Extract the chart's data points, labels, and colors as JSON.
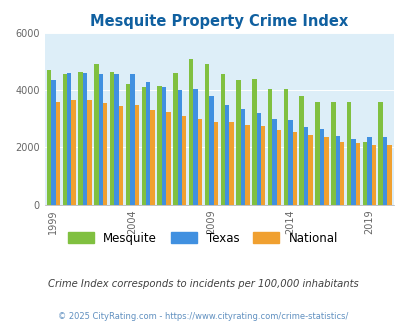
{
  "title": "Mesquite Property Crime Index",
  "title_color": "#1060a0",
  "years": [
    1999,
    2000,
    2001,
    2002,
    2003,
    2004,
    2005,
    2006,
    2007,
    2008,
    2009,
    2010,
    2011,
    2012,
    2013,
    2014,
    2015,
    2016,
    2017,
    2018,
    2019,
    2020
  ],
  "mesquite": [
    4700,
    4550,
    4650,
    4900,
    4650,
    4200,
    4100,
    4150,
    4600,
    5100,
    4900,
    4550,
    4350,
    4400,
    4050,
    4050,
    3800,
    3600,
    3600,
    3600,
    2200,
    3600
  ],
  "texas": [
    4350,
    4600,
    4600,
    4550,
    4550,
    4550,
    4300,
    4100,
    4000,
    4050,
    3800,
    3500,
    3350,
    3200,
    3000,
    2950,
    2700,
    2650,
    2400,
    2300,
    2350,
    2350
  ],
  "national": [
    3600,
    3650,
    3650,
    3550,
    3450,
    3500,
    3300,
    3250,
    3100,
    3000,
    2900,
    2900,
    2800,
    2750,
    2600,
    2550,
    2450,
    2350,
    2200,
    2150,
    2100,
    2100
  ],
  "mesquite_color": "#80c040",
  "texas_color": "#4090e0",
  "national_color": "#f0a030",
  "bg_color": "#ddeef8",
  "ylabel_ticks": [
    0,
    2000,
    4000,
    6000
  ],
  "xtick_years": [
    1999,
    2004,
    2009,
    2014,
    2019
  ],
  "ylim": [
    0,
    6000
  ],
  "note": "Crime Index corresponds to incidents per 100,000 inhabitants",
  "footer": "© 2025 CityRating.com - https://www.cityrating.com/crime-statistics/",
  "note_color": "#404040",
  "footer_color": "#6090c0"
}
